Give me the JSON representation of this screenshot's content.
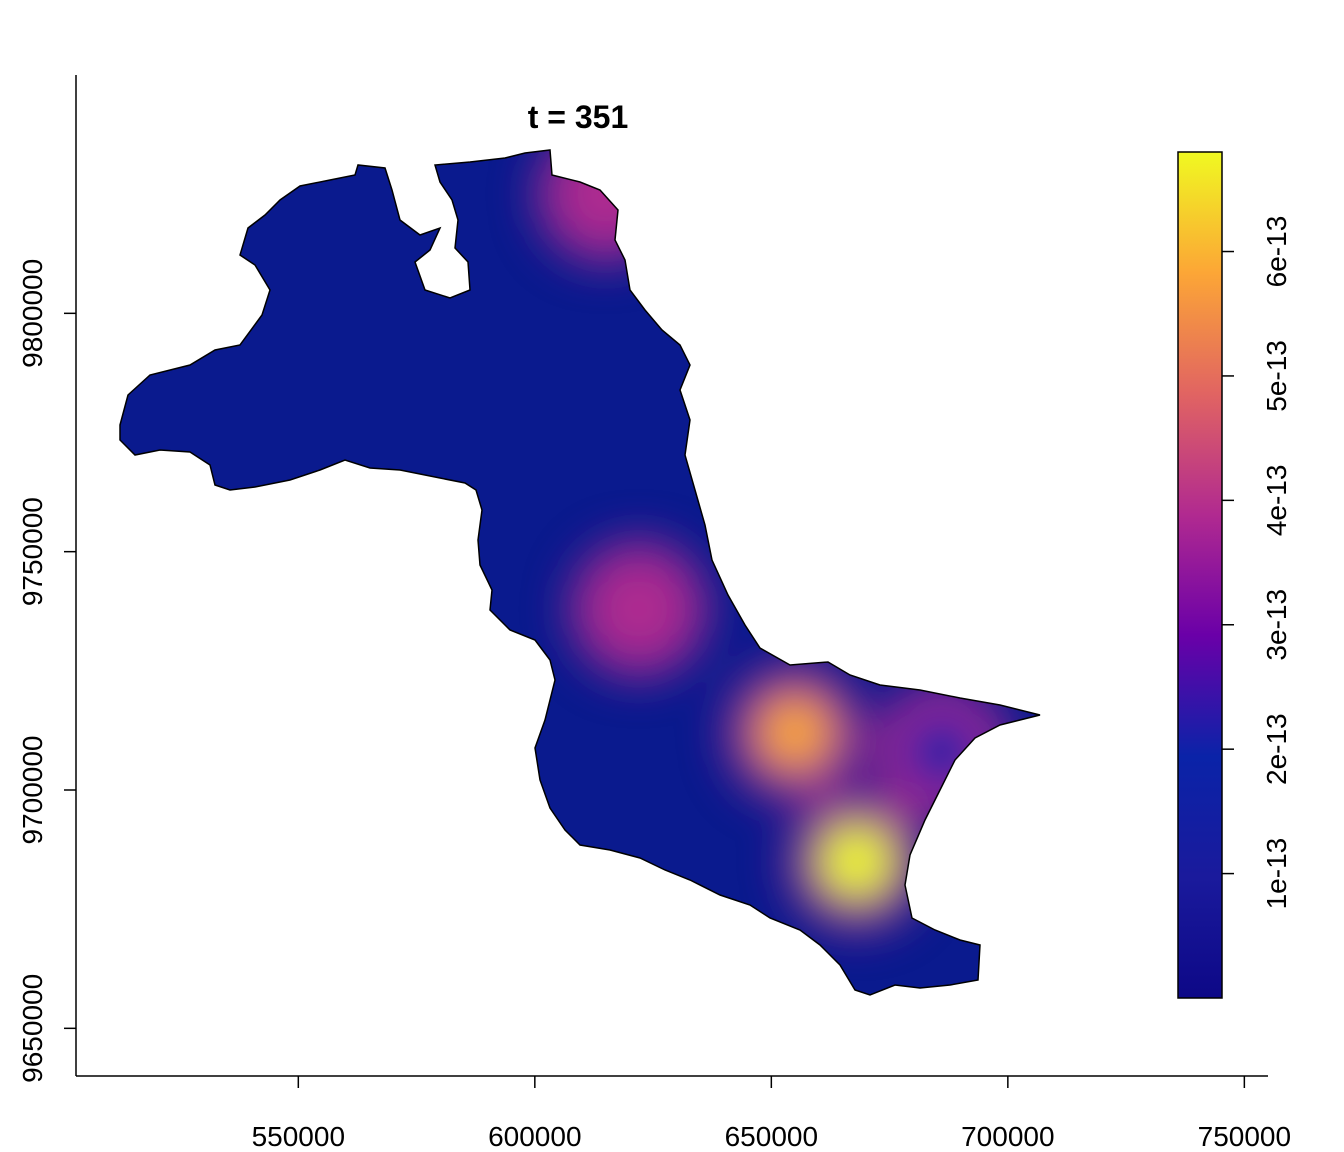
{
  "chart_data": {
    "type": "heatmap",
    "title": "t = 351",
    "x_ticks": [
      550000,
      600000,
      650000,
      700000,
      750000
    ],
    "x_tick_labels": [
      "550000",
      "600000",
      "650000",
      "700000",
      "750000"
    ],
    "xlim": [
      503000,
      755000
    ],
    "y_ticks": [
      9650000,
      9700000,
      9750000,
      9800000
    ],
    "y_tick_labels": [
      "9650000",
      "9700000",
      "9750000",
      "9800000"
    ],
    "ylim": [
      9640000,
      9850000
    ],
    "colorbar": {
      "min": 0,
      "max": 6.8e-13,
      "ticks": [
        1e-13,
        2e-13,
        3e-13,
        4e-13,
        5e-13,
        6e-13
      ],
      "tick_labels": [
        "1e-13",
        "2e-13",
        "3e-13",
        "4e-13",
        "5e-13",
        "6e-13"
      ],
      "palette": [
        "#0d0887",
        "#1a1a9c",
        "#0a23a8",
        "#6a00a8",
        "#b12a90",
        "#e16462",
        "#fca636",
        "#f0f921"
      ]
    },
    "hotspots": [
      {
        "x": 622000,
        "y": 9738000,
        "value": 3.6e-13
      },
      {
        "x": 655000,
        "y": 9712000,
        "value": 5.8e-13
      },
      {
        "x": 668000,
        "y": 9685000,
        "value": 6.6e-13
      },
      {
        "x": 615000,
        "y": 9825000,
        "value": 4.2e-13
      },
      {
        "x": 686000,
        "y": 9708000,
        "value": 1.8e-13
      }
    ],
    "grid": false,
    "legend_position": "right"
  }
}
